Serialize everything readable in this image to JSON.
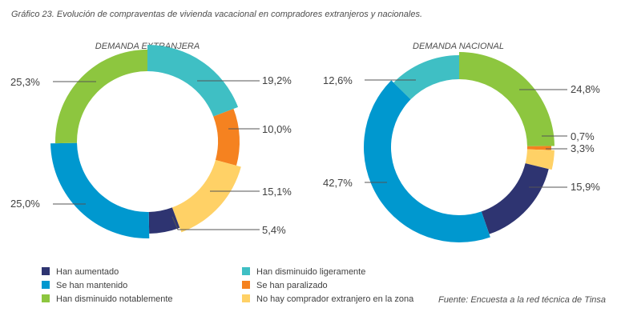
{
  "title": "Gráfico 23. Evolución de compraventas de vivienda vacacional en compradores extranjeros y nacionales.",
  "source": "Fuente: Encuesta a la red técnica de Tinsa",
  "colors": {
    "han_aumentado": "#2e3471",
    "se_han_mantenido": "#0098cf",
    "han_disminuido_notablemente": "#8dc63f",
    "han_disminuido_ligeramente": "#3fbfc4",
    "se_han_paralizado": "#f58220",
    "no_hay_comprador": "#ffd166"
  },
  "legend": [
    {
      "key": "han_aumentado",
      "label": "Han aumentado"
    },
    {
      "key": "se_han_mantenido",
      "label": "Se han mantenido"
    },
    {
      "key": "han_disminuido_notablemente",
      "label": "Han disminuido notablemente"
    },
    {
      "key": "han_disminuido_ligeramente",
      "label": "Han disminuido ligeramente"
    },
    {
      "key": "se_han_paralizado",
      "label": "Se han paralizado"
    },
    {
      "key": "no_hay_comprador",
      "label": "No hay comprador extranjero en la zona"
    }
  ],
  "chart_data": [
    {
      "type": "pie",
      "title": "DEMANDA EXTRANJERA",
      "slices": [
        {
          "key": "han_disminuido_ligeramente",
          "label": "19,2%",
          "value": 19.2
        },
        {
          "key": "se_han_paralizado",
          "label": "10,0%",
          "value": 10.0
        },
        {
          "key": "no_hay_comprador",
          "label": "15,1%",
          "value": 15.1
        },
        {
          "key": "han_aumentado",
          "label": "5,4%",
          "value": 5.4
        },
        {
          "key": "se_han_mantenido",
          "label": "25,0%",
          "value": 25.0
        },
        {
          "key": "han_disminuido_notablemente",
          "label": "25,3%",
          "value": 25.3
        }
      ]
    },
    {
      "type": "pie",
      "title": "DEMANDA NACIONAL",
      "slices": [
        {
          "key": "han_disminuido_notablemente",
          "label": "24,8%",
          "value": 24.8
        },
        {
          "key": "se_han_paralizado",
          "label": "0,7%",
          "value": 0.7
        },
        {
          "key": "no_hay_comprador",
          "label": "3,3%",
          "value": 3.3
        },
        {
          "key": "han_aumentado",
          "label": "15,9%",
          "value": 15.9
        },
        {
          "key": "se_han_mantenido",
          "label": "42,7%",
          "value": 42.7
        },
        {
          "key": "han_disminuido_ligeramente",
          "label": "12,6%",
          "value": 12.6
        }
      ]
    }
  ]
}
